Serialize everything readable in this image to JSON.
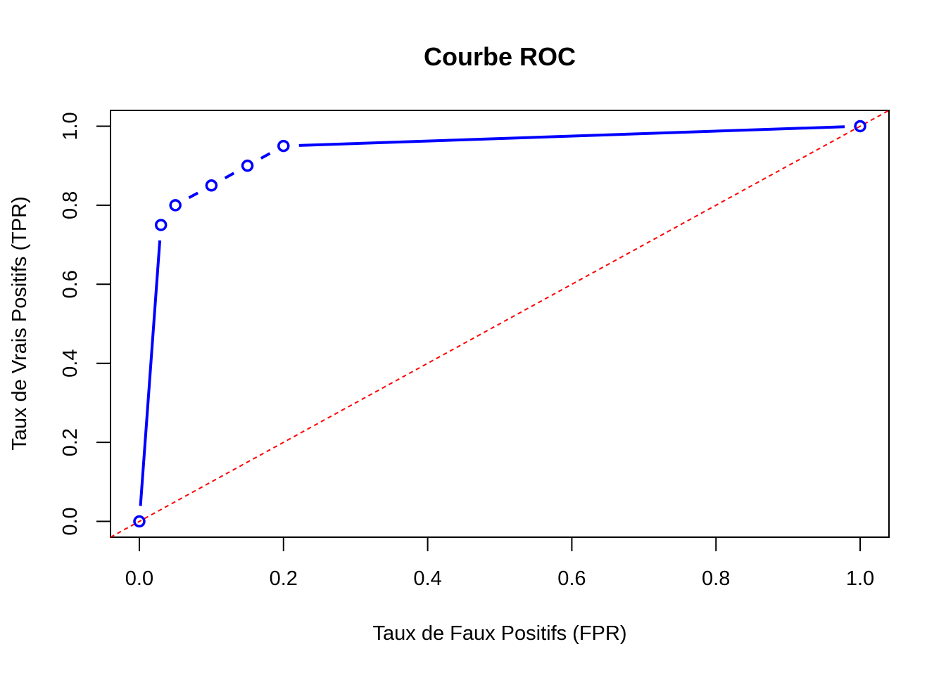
{
  "chart_data": {
    "type": "line",
    "title": "Courbe ROC",
    "xlabel": "Taux de Faux Positifs (FPR)",
    "ylabel": "Taux de Vrais Positifs (TPR)",
    "xlim": [
      -0.04,
      1.04
    ],
    "ylim": [
      -0.04,
      1.04
    ],
    "x_ticks": [
      0.0,
      0.2,
      0.4,
      0.6,
      0.8,
      1.0
    ],
    "x_tick_labels": [
      "0.0",
      "0.2",
      "0.4",
      "0.6",
      "0.8",
      "1.0"
    ],
    "y_ticks": [
      0.0,
      0.2,
      0.4,
      0.6,
      0.8,
      1.0
    ],
    "y_tick_labels": [
      "0.0",
      "0.2",
      "0.4",
      "0.6",
      "0.8",
      "1.0"
    ],
    "grid": false,
    "series": [
      {
        "x": [
          0.0,
          0.03,
          0.05,
          0.1,
          0.15,
          0.2,
          1.0
        ],
        "y": [
          0.0,
          0.75,
          0.8,
          0.85,
          0.9,
          0.95,
          1.0
        ],
        "color": "#0000ff",
        "style": "line-with-open-circles"
      }
    ],
    "reference_line": {
      "x": [
        -0.04,
        1.04
      ],
      "y": [
        -0.04,
        1.04
      ],
      "color": "#ff0000",
      "style": "dashed"
    }
  }
}
